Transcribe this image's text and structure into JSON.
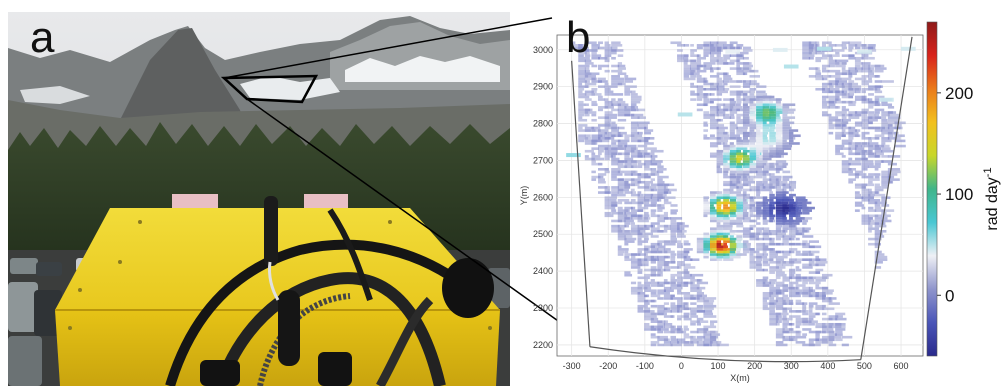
{
  "figure": {
    "panel_a_label": "a",
    "panel_b_label": "b"
  },
  "chart_data": {
    "type": "heatmap",
    "xlabel": "X(m)",
    "ylabel": "Y(m)",
    "xlim": [
      -340,
      660
    ],
    "ylim": [
      2170,
      3040
    ],
    "xticks": [
      -300,
      -200,
      -100,
      0,
      100,
      200,
      300,
      400,
      500,
      600
    ],
    "yticks": [
      2200,
      2300,
      2400,
      2500,
      2600,
      2700,
      2800,
      2900,
      3000
    ],
    "grid": true,
    "colorbar": {
      "label": "rad day-1",
      "label_base": "rad day",
      "label_sup": "-1",
      "range": [
        -60,
        270
      ],
      "ticks": [
        0,
        100,
        200
      ],
      "tick_labels": [
        "0",
        "100",
        "200"
      ],
      "colors": [
        "#2a2a8c",
        "#4a55b8",
        "#8f95cc",
        "#eef0f5",
        "#49c7d3",
        "#3fb58a",
        "#c8d72a",
        "#f2c01e",
        "#ea7a1a",
        "#d8231b",
        "#8e1a1a"
      ]
    },
    "hotspots": [
      {
        "x": 100,
        "y": 2470,
        "value": 260
      },
      {
        "x": 110,
        "y": 2575,
        "value": 200
      },
      {
        "x": 150,
        "y": 2705,
        "value": 150
      },
      {
        "x": 270,
        "y": 2570,
        "value": -60
      },
      {
        "x": 235,
        "y": 2760,
        "value": 50
      },
      {
        "x": 225,
        "y": 2830,
        "value": 120
      }
    ]
  }
}
